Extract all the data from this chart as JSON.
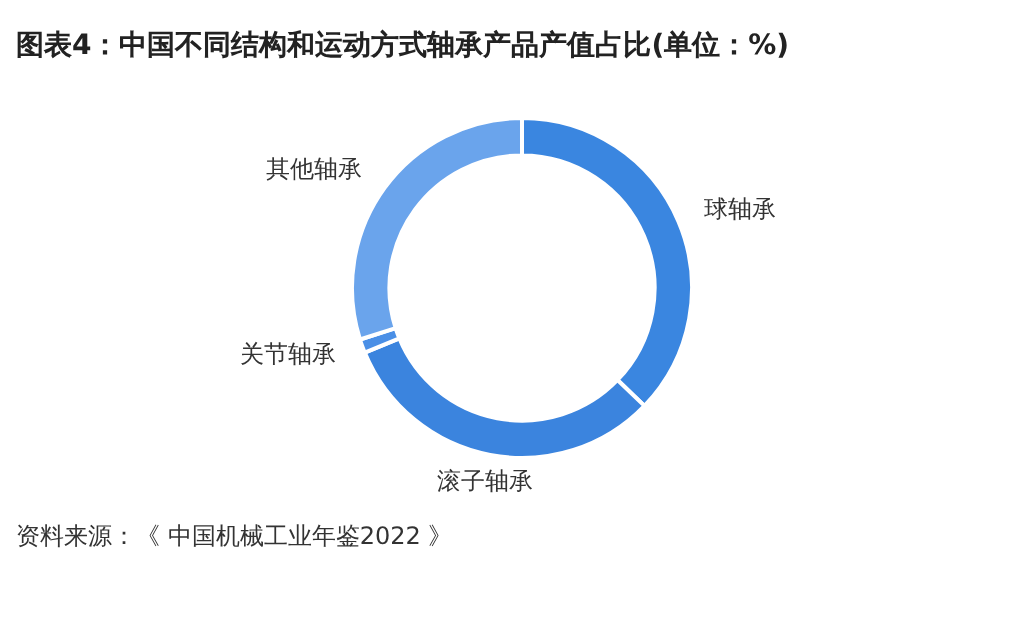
{
  "chart_data": {
    "type": "donut",
    "title": "图表4：中国不同结构和运动方式轴承产品产值占比(单位：%)",
    "categories": [
      "球轴承",
      "滚子轴承",
      "关节轴承",
      "其他轴承"
    ],
    "values": [
      37.2,
      31.6,
      1.3,
      29.9
    ],
    "colors": [
      "#3a86e0",
      "#3b84de",
      "#4a8fe6",
      "#6aa4ec"
    ],
    "legend": false,
    "annotations": [
      "资料来源：《 中国机械工业年鉴2022 》"
    ]
  }
}
